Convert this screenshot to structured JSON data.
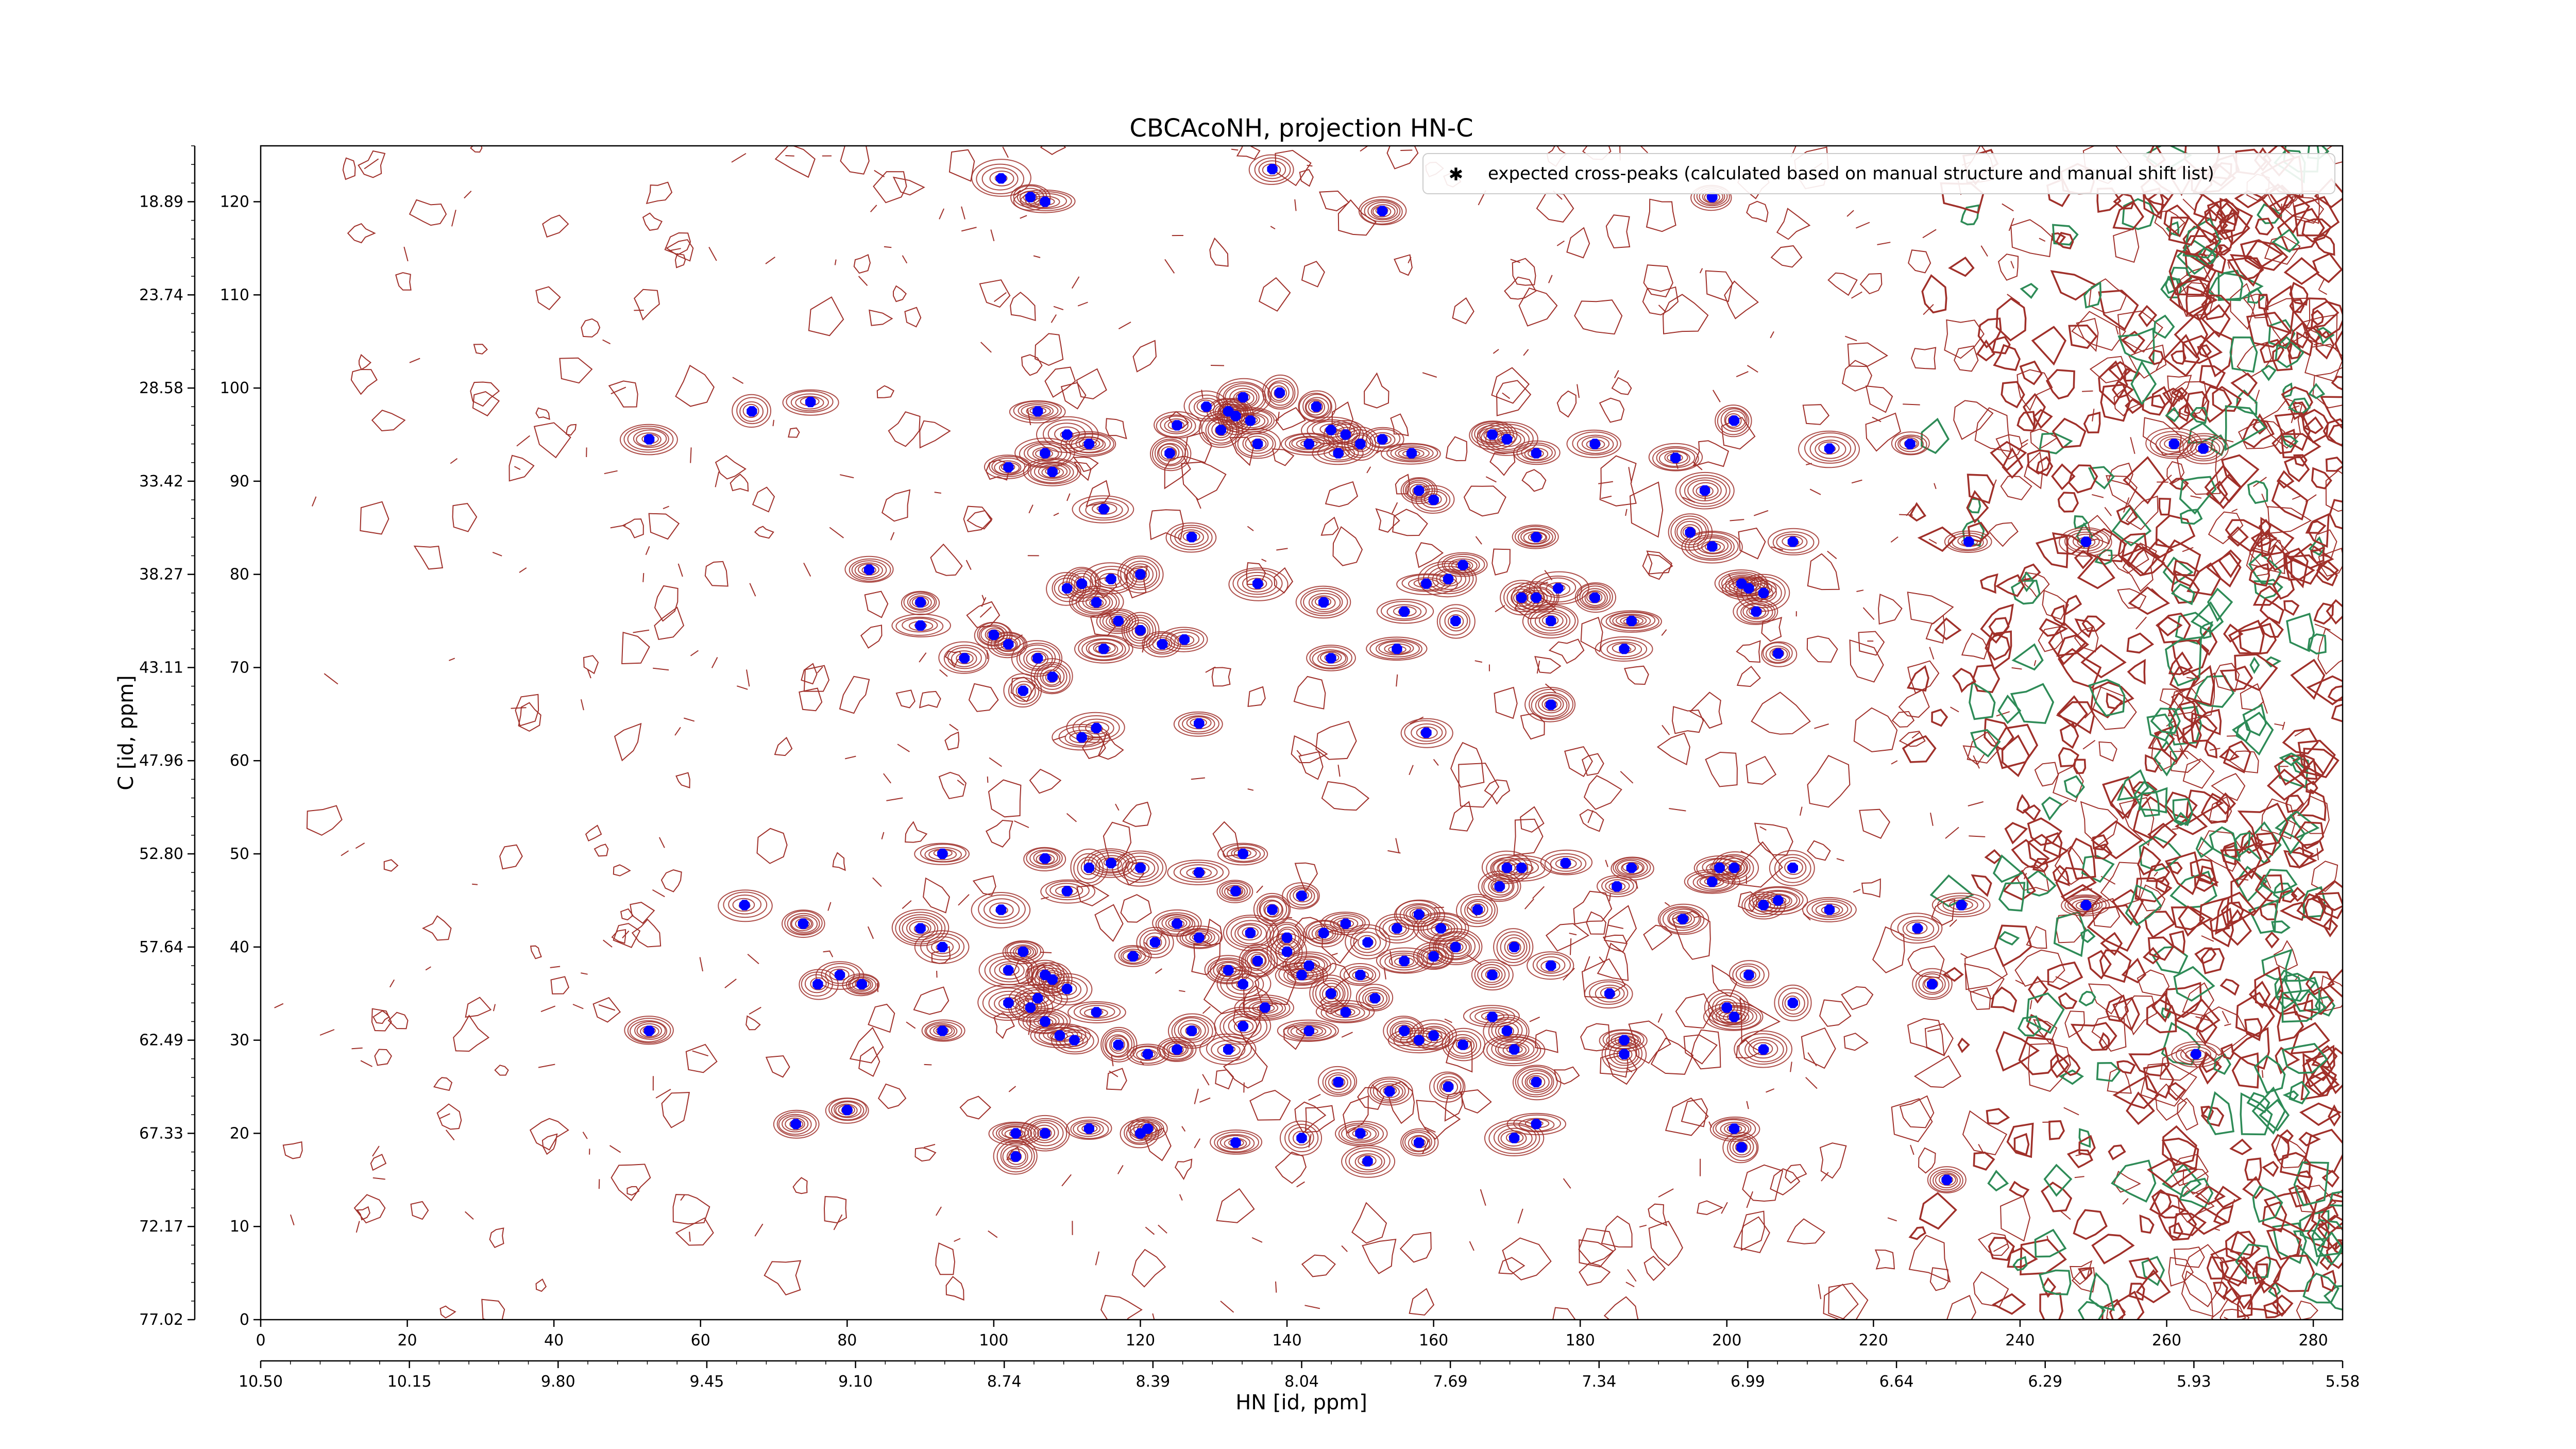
{
  "chart_data": {
    "type": "scatter",
    "title": "CBCAcoNH, projection HN-C",
    "xlabel": "HN [id, ppm]",
    "ylabel": "C [id, ppm]",
    "x_index_ticks": [
      "0",
      "20",
      "40",
      "60",
      "80",
      "100",
      "120",
      "140",
      "160",
      "180",
      "200",
      "220",
      "240",
      "260",
      "280"
    ],
    "x_index_range": [
      0,
      284
    ],
    "x_ppm_ticks": [
      "10.50",
      "10.15",
      "9.80",
      "9.45",
      "9.10",
      "8.74",
      "8.39",
      "8.04",
      "7.69",
      "7.34",
      "6.99",
      "6.64",
      "6.29",
      "5.93",
      "5.58"
    ],
    "y_index_ticks": [
      "0",
      "10",
      "20",
      "30",
      "40",
      "50",
      "60",
      "70",
      "80",
      "90",
      "100",
      "110",
      "120"
    ],
    "y_index_range": [
      0,
      126
    ],
    "y_ppm_ticks": [
      "77.02",
      "72.17",
      "67.33",
      "62.49",
      "57.64",
      "52.80",
      "47.96",
      "43.11",
      "38.27",
      "33.42",
      "28.58",
      "23.74",
      "18.89"
    ],
    "legend": {
      "position": "top-right",
      "label": "expected cross-peaks (calculated based on manual structure and manual shift list)"
    },
    "colors": {
      "contour_positive": "#a0302a",
      "contour_negative": "#2e8b57",
      "marker": "#0000ff"
    },
    "series": [
      {
        "name": "expected cross-peaks (calculated based on manual structure and manual shift list)",
        "points": [
          [
            53,
            94.5
          ],
          [
            67,
            97.5
          ],
          [
            75,
            98.5
          ],
          [
            83,
            80.5
          ],
          [
            90,
            77
          ],
          [
            90,
            74.5
          ],
          [
            96,
            71
          ],
          [
            100,
            73.5
          ],
          [
            102,
            72.5
          ],
          [
            104,
            67.5
          ],
          [
            106,
            71
          ],
          [
            108,
            69
          ],
          [
            110,
            78.5
          ],
          [
            112,
            62.5
          ],
          [
            114,
            63.5
          ],
          [
            115,
            72
          ],
          [
            114,
            77
          ],
          [
            117,
            75
          ],
          [
            120,
            74
          ],
          [
            123,
            72.5
          ],
          [
            126,
            73
          ],
          [
            128,
            64
          ],
          [
            112,
            79
          ],
          [
            116,
            79.5
          ],
          [
            120,
            80
          ],
          [
            101,
            122.5
          ],
          [
            105,
            120.5
          ],
          [
            107,
            120
          ],
          [
            138,
            123.5
          ],
          [
            153,
            119
          ],
          [
            198,
            120.5
          ],
          [
            102,
            91.5
          ],
          [
            106,
            97.5
          ],
          [
            107,
            93
          ],
          [
            108,
            91
          ],
          [
            110,
            95
          ],
          [
            113,
            94
          ],
          [
            115,
            87
          ],
          [
            124,
            93
          ],
          [
            125,
            96
          ],
          [
            129,
            98
          ],
          [
            131,
            95.5
          ],
          [
            132,
            97.5
          ],
          [
            133,
            97
          ],
          [
            134,
            99
          ],
          [
            135,
            96.5
          ],
          [
            136,
            94
          ],
          [
            139,
            99.5
          ],
          [
            143,
            94
          ],
          [
            144,
            98
          ],
          [
            146,
            95.5
          ],
          [
            147,
            93
          ],
          [
            148,
            95
          ],
          [
            150,
            94
          ],
          [
            153,
            94.5
          ],
          [
            157,
            93
          ],
          [
            160,
            88
          ],
          [
            158,
            89
          ],
          [
            168,
            95
          ],
          [
            170,
            94.5
          ],
          [
            174,
            93
          ],
          [
            182,
            94
          ],
          [
            193,
            92.5
          ],
          [
            197,
            89
          ],
          [
            201,
            96.5
          ],
          [
            209,
            83.5
          ],
          [
            214,
            93.5
          ],
          [
            225,
            94
          ],
          [
            233,
            83.5
          ],
          [
            249,
            83.5
          ],
          [
            261,
            94
          ],
          [
            265,
            93.5
          ],
          [
            145,
            77
          ],
          [
            156,
            76
          ],
          [
            159,
            79
          ],
          [
            162,
            79.5
          ],
          [
            163,
            75
          ],
          [
            172,
            77.5
          ],
          [
            174,
            77.5
          ],
          [
            176,
            75
          ],
          [
            177,
            78.5
          ],
          [
            182,
            77.5
          ],
          [
            186,
            72
          ],
          [
            187,
            75
          ],
          [
            195,
            84.5
          ],
          [
            198,
            83
          ],
          [
            202,
            79
          ],
          [
            203,
            78.5
          ],
          [
            204,
            76
          ],
          [
            205,
            78
          ],
          [
            207,
            71.5
          ],
          [
            174,
            84
          ],
          [
            164,
            81
          ],
          [
            127,
            84
          ],
          [
            136,
            79
          ],
          [
            146,
            71
          ],
          [
            159,
            63
          ],
          [
            176,
            66
          ],
          [
            155,
            72
          ],
          [
            93,
            50
          ],
          [
            107,
            49.5
          ],
          [
            113,
            48.5
          ],
          [
            110,
            46
          ],
          [
            116,
            49
          ],
          [
            120,
            48.5
          ],
          [
            128,
            48
          ],
          [
            134,
            50
          ],
          [
            138,
            44
          ],
          [
            133,
            46
          ],
          [
            135,
            41.5
          ],
          [
            140,
            41
          ],
          [
            142,
            45.5
          ],
          [
            145,
            41.5
          ],
          [
            148,
            42.5
          ],
          [
            151,
            40.5
          ],
          [
            155,
            42
          ],
          [
            158,
            43.5
          ],
          [
            161,
            42
          ],
          [
            163,
            40
          ],
          [
            166,
            44
          ],
          [
            169,
            46.5
          ],
          [
            170,
            48.5
          ],
          [
            172,
            48.5
          ],
          [
            178,
            49
          ],
          [
            185,
            46.5
          ],
          [
            187,
            48.5
          ],
          [
            198,
            47
          ],
          [
            199,
            48.5
          ],
          [
            201,
            48.5
          ],
          [
            209,
            48.5
          ],
          [
            205,
            44.5
          ],
          [
            207,
            45
          ],
          [
            214,
            44
          ],
          [
            232,
            44.5
          ],
          [
            249,
            44.5
          ],
          [
            90,
            42
          ],
          [
            93,
            40
          ],
          [
            101,
            44
          ],
          [
            102,
            37.5
          ],
          [
            104,
            39.5
          ],
          [
            107,
            37
          ],
          [
            106,
            34.5
          ],
          [
            108,
            36.5
          ],
          [
            110,
            35.5
          ],
          [
            119,
            39
          ],
          [
            122,
            40.5
          ],
          [
            125,
            42.5
          ],
          [
            128,
            41
          ],
          [
            132,
            37.5
          ],
          [
            134,
            36
          ],
          [
            136,
            38.5
          ],
          [
            140,
            39.5
          ],
          [
            142,
            37
          ],
          [
            143,
            38
          ],
          [
            146,
            35
          ],
          [
            150,
            37
          ],
          [
            156,
            38.5
          ],
          [
            160,
            39
          ],
          [
            168,
            37
          ],
          [
            171,
            40
          ],
          [
            176,
            38
          ],
          [
            184,
            35
          ],
          [
            194,
            43
          ],
          [
            203,
            37
          ],
          [
            209,
            34
          ],
          [
            226,
            42
          ],
          [
            228,
            36
          ],
          [
            230,
            15
          ],
          [
            66,
            44.5
          ],
          [
            74,
            42.5
          ],
          [
            76,
            36
          ],
          [
            79,
            37
          ],
          [
            82,
            36
          ],
          [
            93,
            31
          ],
          [
            102,
            34
          ],
          [
            105,
            33.5
          ],
          [
            107,
            32
          ],
          [
            109,
            30.5
          ],
          [
            111,
            30
          ],
          [
            114,
            33
          ],
          [
            117,
            29.5
          ],
          [
            121,
            28.5
          ],
          [
            125,
            29
          ],
          [
            127,
            31
          ],
          [
            132,
            29
          ],
          [
            134,
            31.5
          ],
          [
            137,
            33.5
          ],
          [
            143,
            31
          ],
          [
            148,
            33
          ],
          [
            152,
            34.5
          ],
          [
            156,
            31
          ],
          [
            158,
            30
          ],
          [
            160,
            30.5
          ],
          [
            164,
            29.5
          ],
          [
            168,
            32.5
          ],
          [
            170,
            31
          ],
          [
            171,
            29
          ],
          [
            186,
            30
          ],
          [
            186,
            28.5
          ],
          [
            200,
            33.5
          ],
          [
            201,
            32.5
          ],
          [
            205,
            29
          ],
          [
            264,
            28.5
          ],
          [
            53,
            31
          ],
          [
            73,
            21
          ],
          [
            80,
            22.5
          ],
          [
            103,
            20
          ],
          [
            103,
            17.5
          ],
          [
            107,
            20
          ],
          [
            113,
            20.5
          ],
          [
            120,
            20
          ],
          [
            121,
            20.5
          ],
          [
            133,
            19
          ],
          [
            142,
            19.5
          ],
          [
            147,
            25.5
          ],
          [
            150,
            20
          ],
          [
            151,
            17
          ],
          [
            154,
            24.5
          ],
          [
            158,
            19
          ],
          [
            162,
            25
          ],
          [
            171,
            19.5
          ],
          [
            174,
            25.5
          ],
          [
            174,
            21
          ],
          [
            201,
            20.5
          ],
          [
            202,
            18.5
          ]
        ]
      }
    ]
  }
}
